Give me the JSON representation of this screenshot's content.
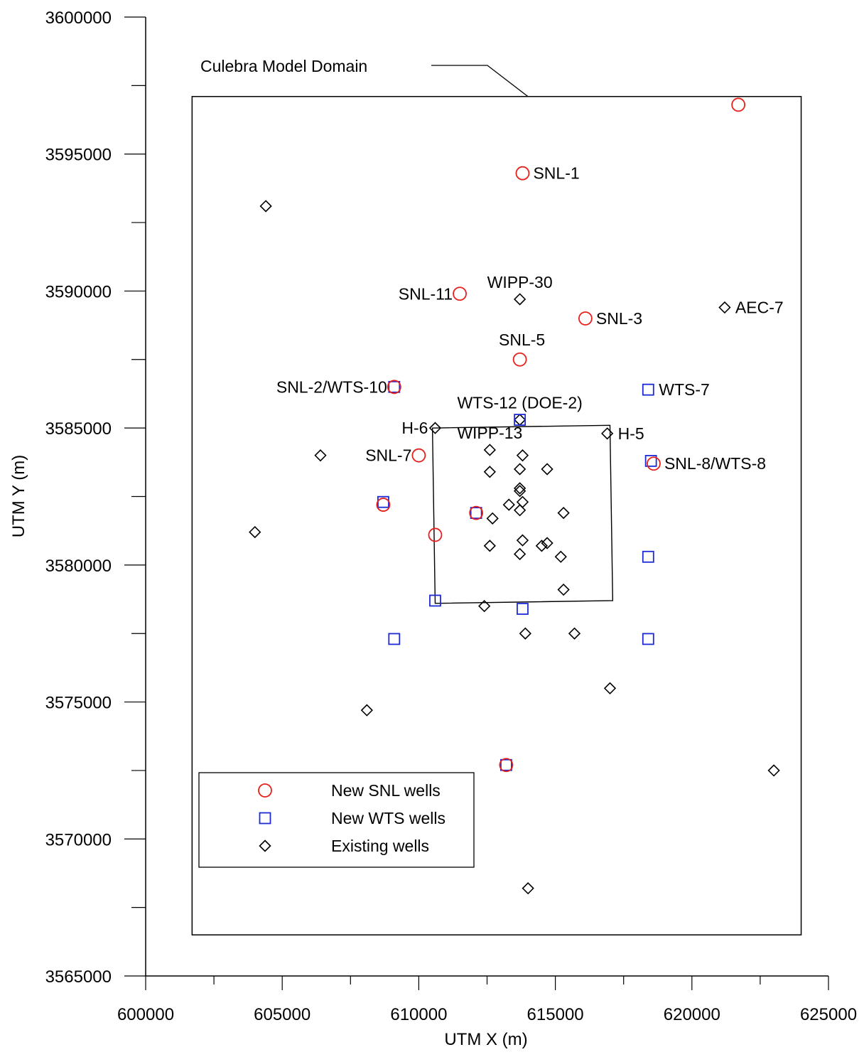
{
  "chart_data": {
    "type": "scatter",
    "xlabel": "UTM X (m)",
    "ylabel": "UTM Y (m)",
    "xlim": [
      600000,
      625000
    ],
    "ylim": [
      3565000,
      3600000
    ],
    "x_ticks": [
      "600000",
      "605000",
      "610000",
      "615000",
      "620000",
      "625000"
    ],
    "y_ticks": [
      "3565000",
      "3570000",
      "3575000",
      "3580000",
      "3585000",
      "3590000",
      "3595000",
      "3600000"
    ],
    "grid": false,
    "legend_position": "bottom-left",
    "colors": {
      "snl": "#e8201c",
      "wts": "#1c2ad8",
      "existing": "#000000"
    },
    "series": [
      {
        "name": "New SNL wells",
        "marker": "circle",
        "points": [
          {
            "x": 621700,
            "y": 3596800
          },
          {
            "x": 613800,
            "y": 3594300
          },
          {
            "x": 611500,
            "y": 3589900
          },
          {
            "x": 616100,
            "y": 3589000
          },
          {
            "x": 613700,
            "y": 3587500
          },
          {
            "x": 609100,
            "y": 3586500
          },
          {
            "x": 610000,
            "y": 3584000
          },
          {
            "x": 618600,
            "y": 3583700
          },
          {
            "x": 608700,
            "y": 3582200
          },
          {
            "x": 612100,
            "y": 3581900
          },
          {
            "x": 610600,
            "y": 3581100
          },
          {
            "x": 613200,
            "y": 3572700
          }
        ]
      },
      {
        "name": "New WTS wells",
        "marker": "square",
        "points": [
          {
            "x": 609100,
            "y": 3586500
          },
          {
            "x": 618400,
            "y": 3586400
          },
          {
            "x": 613700,
            "y": 3585300
          },
          {
            "x": 618500,
            "y": 3583800
          },
          {
            "x": 608700,
            "y": 3582300
          },
          {
            "x": 612100,
            "y": 3581900
          },
          {
            "x": 618400,
            "y": 3580300
          },
          {
            "x": 610600,
            "y": 3578700
          },
          {
            "x": 613800,
            "y": 3578400
          },
          {
            "x": 609100,
            "y": 3577300
          },
          {
            "x": 618400,
            "y": 3577300
          },
          {
            "x": 613200,
            "y": 3572700
          }
        ]
      },
      {
        "name": "Existing wells",
        "marker": "diamond",
        "points": [
          {
            "x": 604400,
            "y": 3593100
          },
          {
            "x": 613700,
            "y": 3589700
          },
          {
            "x": 621200,
            "y": 3589400
          },
          {
            "x": 613700,
            "y": 3585300
          },
          {
            "x": 610600,
            "y": 3585000
          },
          {
            "x": 616900,
            "y": 3584800
          },
          {
            "x": 612600,
            "y": 3584200
          },
          {
            "x": 606400,
            "y": 3584000
          },
          {
            "x": 613800,
            "y": 3584000
          },
          {
            "x": 613700,
            "y": 3583500
          },
          {
            "x": 614700,
            "y": 3583500
          },
          {
            "x": 612600,
            "y": 3583400
          },
          {
            "x": 613700,
            "y": 3582800
          },
          {
            "x": 613700,
            "y": 3582700
          },
          {
            "x": 613800,
            "y": 3582300
          },
          {
            "x": 613300,
            "y": 3582200
          },
          {
            "x": 613700,
            "y": 3582000
          },
          {
            "x": 615300,
            "y": 3581900
          },
          {
            "x": 612700,
            "y": 3581700
          },
          {
            "x": 604000,
            "y": 3581200
          },
          {
            "x": 613800,
            "y": 3580900
          },
          {
            "x": 612600,
            "y": 3580700
          },
          {
            "x": 614500,
            "y": 3580700
          },
          {
            "x": 614700,
            "y": 3580800
          },
          {
            "x": 613700,
            "y": 3580400
          },
          {
            "x": 615200,
            "y": 3580300
          },
          {
            "x": 615300,
            "y": 3579100
          },
          {
            "x": 612400,
            "y": 3578500
          },
          {
            "x": 613900,
            "y": 3577500
          },
          {
            "x": 615700,
            "y": 3577500
          },
          {
            "x": 617000,
            "y": 3575500
          },
          {
            "x": 608100,
            "y": 3574700
          },
          {
            "x": 623000,
            "y": 3572500
          },
          {
            "x": 614000,
            "y": 3568200
          }
        ]
      }
    ],
    "annotations": [
      {
        "text": "SNL-1",
        "x": 613800,
        "y": 3594300,
        "anchor": "right"
      },
      {
        "text": "SNL-11",
        "x": 611500,
        "y": 3589900,
        "anchor": "left"
      },
      {
        "text": "WIPP-30",
        "x": 613700,
        "y": 3589700,
        "anchor": "above"
      },
      {
        "text": "SNL-3",
        "x": 616100,
        "y": 3589000,
        "anchor": "right"
      },
      {
        "text": "AEC-7",
        "x": 621200,
        "y": 3589400,
        "anchor": "right"
      },
      {
        "text": "SNL-5",
        "x": 613700,
        "y": 3587500,
        "anchor": "above-large",
        "color": "#e8201c"
      },
      {
        "text": "SNL-2/WTS-10",
        "x": 609100,
        "y": 3586500,
        "anchor": "left"
      },
      {
        "text": "WTS-7",
        "x": 618400,
        "y": 3586400,
        "anchor": "right"
      },
      {
        "text": "WTS-12 (DOE-2)",
        "x": 613700,
        "y": 3585300,
        "anchor": "above"
      },
      {
        "text": "H-6",
        "x": 610600,
        "y": 3585000,
        "anchor": "left"
      },
      {
        "text": "H-5",
        "x": 616900,
        "y": 3584800,
        "anchor": "right"
      },
      {
        "text": "WIPP-13",
        "x": 612600,
        "y": 3584200,
        "anchor": "above"
      },
      {
        "text": "SNL-7",
        "x": 610000,
        "y": 3584000,
        "anchor": "left"
      },
      {
        "text": "SNL-8/WTS-8",
        "x": 618600,
        "y": 3583700,
        "anchor": "right"
      }
    ],
    "domain_box": {
      "label": "Culebra Model Domain",
      "x0": 601700,
      "x1": 624000,
      "y0": 3566500,
      "y1": 3597100
    },
    "wipp_boundary": [
      {
        "x": 610500,
        "y": 3585000
      },
      {
        "x": 617000,
        "y": 3585100
      },
      {
        "x": 617100,
        "y": 3578700
      },
      {
        "x": 610600,
        "y": 3578600
      }
    ]
  }
}
